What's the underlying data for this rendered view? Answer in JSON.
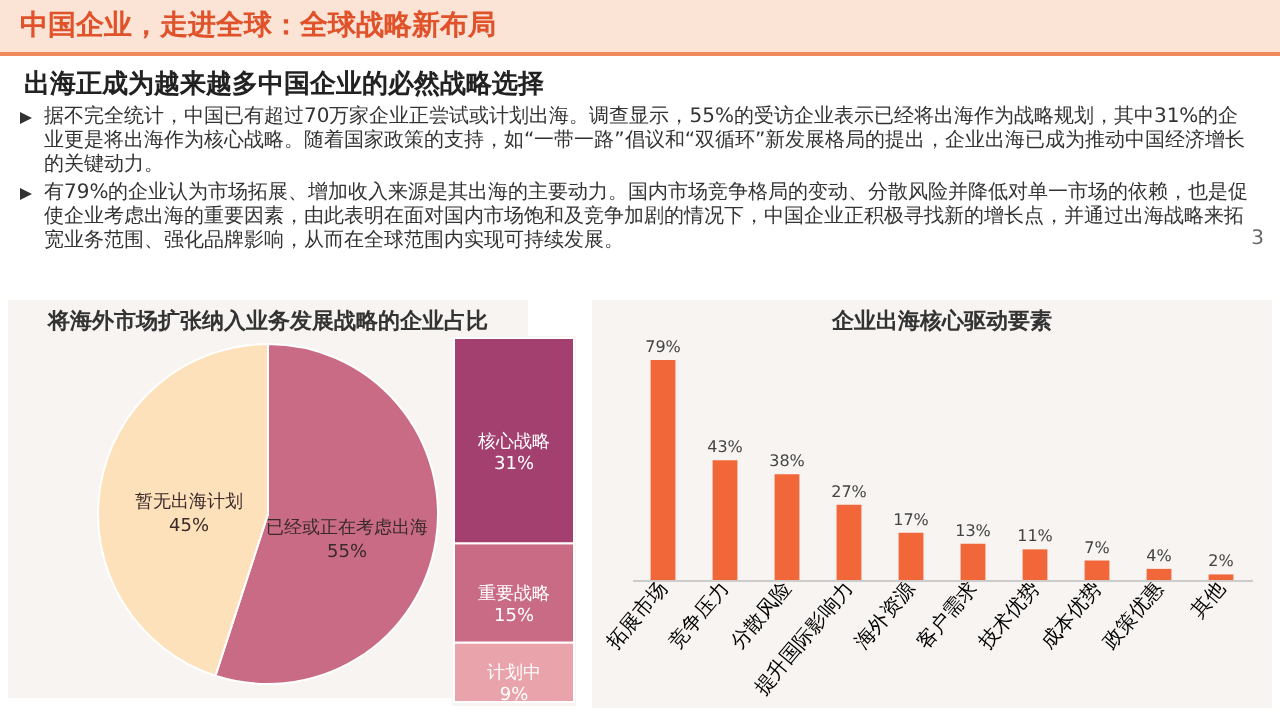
{
  "chart_data": [
    {
      "type": "other",
      "title": "中国企业，走进全球：全球战略新布局",
      "subtitle": "出海正成为越来越多中国企业的必然战略选择",
      "annotations": [
        "据不完全统计，中国已有超过70万家企业正尝试或计划出海。调查显示，55%的受访企业表示已经将出海作为战略规划，其中31%的企业更是将出海作为核心战略。随着国家政策的支持，如“一带一路”倡议和“双循环”新发展格局的提出，企业出海已成为推动中国经济增长的关键动力。",
        "有79%的企业认为市场拓展、增加收入来源是其出海的主要动力。国内市场竞争格局的变动、分散风险并降低对单一市场的依赖，也是促使企业考虑出海的重要因素，由此表明在面对国内市场饱和及竞争加剧的情况下，中国企业正积极寻找新的增长点，并通过出海战略来拓宽业务范围、强化品牌影响，从而在全球范围内实现可持续发展。",
        "3"
      ]
    },
    {
      "type": "pie",
      "title": "将海外市场扩张纳入业务发展战略的企业占比",
      "categories": [
        "已经或正在考虑出海",
        "暂无出海计划"
      ],
      "values": [
        55,
        45
      ],
      "colors": [
        "#c96b84",
        "#fde1bb"
      ],
      "value_labels": [
        "55%",
        "45%"
      ]
    },
    {
      "type": "bar",
      "stacked": true,
      "categories": [
        null
      ],
      "series": [
        {
          "name": "计划中",
          "color": "#e9a3aa",
          "values": [
            9
          ],
          "value_labels": [
            "9%"
          ]
        },
        {
          "name": "重要战略",
          "color": "#c96b84",
          "values": [
            15
          ],
          "value_labels": [
            "15%"
          ]
        },
        {
          "name": "核心战略",
          "color": "#a3406f",
          "values": [
            31
          ],
          "value_labels": [
            "31%"
          ]
        }
      ]
    },
    {
      "type": "bar",
      "title": "企业出海核心驱动要素",
      "categories": [
        "拓展市场",
        "竞争压力",
        "分散风险",
        "提升国际影响力",
        "海外资源",
        "客户需求",
        "技术优势",
        "成本优势",
        "政策优惠",
        "其他"
      ],
      "values": [
        79,
        43,
        38,
        27,
        17,
        13,
        11,
        7,
        4,
        2
      ],
      "color": "#f2673a",
      "value_labels": [
        "79%",
        "43%",
        "38%",
        "27%",
        "17%",
        "13%",
        "11%",
        "7%",
        "4%",
        "2%"
      ]
    }
  ]
}
